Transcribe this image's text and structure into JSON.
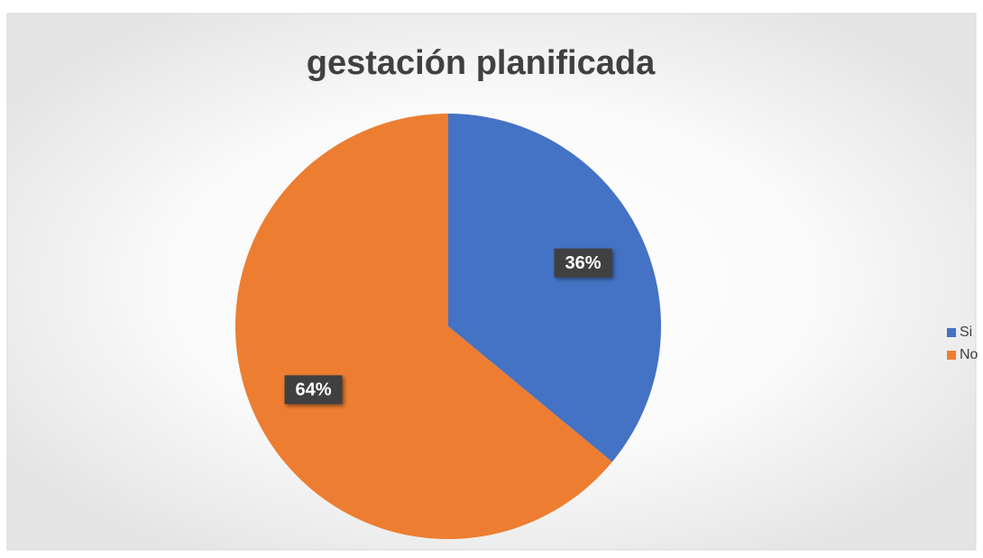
{
  "chart_data": {
    "type": "pie",
    "title": "gestación planificada",
    "categories": [
      "Si",
      "No"
    ],
    "values": [
      36,
      64
    ],
    "value_labels": [
      "36%",
      "64%"
    ],
    "colors": [
      "#4472c4",
      "#ed7d31"
    ],
    "legend": "right"
  }
}
